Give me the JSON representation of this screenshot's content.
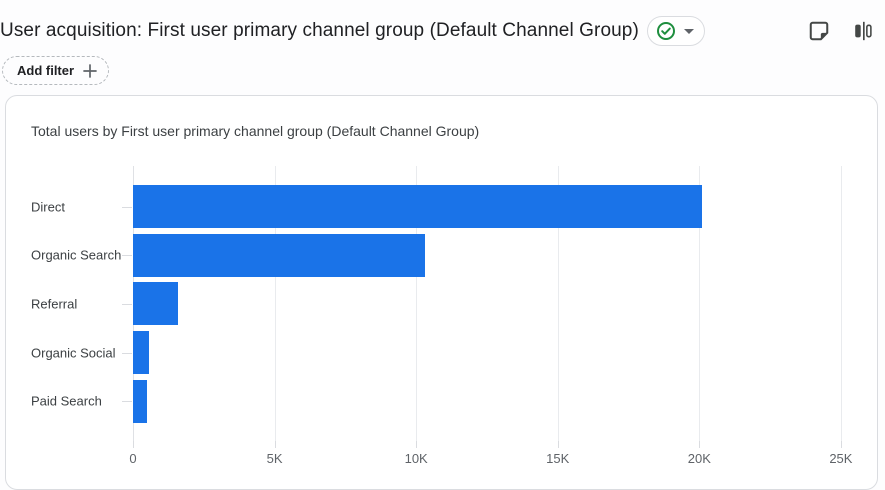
{
  "header": {
    "title": "User acquisition: First user primary channel group (Default Channel Group)",
    "quality_badge": {
      "state": "good",
      "check_color": "#1e8e3e"
    },
    "icons": {
      "note": "sticky-note-icon",
      "comparison": "comparison-icon"
    }
  },
  "filter_bar": {
    "add_filter_label": "Add filter",
    "plus_icon": "+"
  },
  "card": {
    "title": "Total users by First user primary channel group (Default Channel Group)"
  },
  "chart_data": {
    "type": "bar",
    "orientation": "horizontal",
    "title": "Total users by First user primary channel group (Default Channel Group)",
    "categories": [
      "Direct",
      "Organic Search",
      "Referral",
      "Organic Social",
      "Paid Search"
    ],
    "values": [
      20100,
      10300,
      1600,
      550,
      500
    ],
    "x_tick_labels": [
      "0",
      "5K",
      "10K",
      "15K",
      "20K",
      "25K"
    ],
    "x_tick_values": [
      0,
      5000,
      10000,
      15000,
      20000,
      25000
    ],
    "xlim": [
      0,
      25180
    ],
    "bar_color": "#1a73e8",
    "grid": true,
    "legend": false
  },
  "colors": {
    "bar": "#1a73e8",
    "gridline": "#e9ebee",
    "axis_label": "#5f6368",
    "category_label": "#3c4043",
    "card_border": "#dadce0",
    "icon": "#444746"
  }
}
